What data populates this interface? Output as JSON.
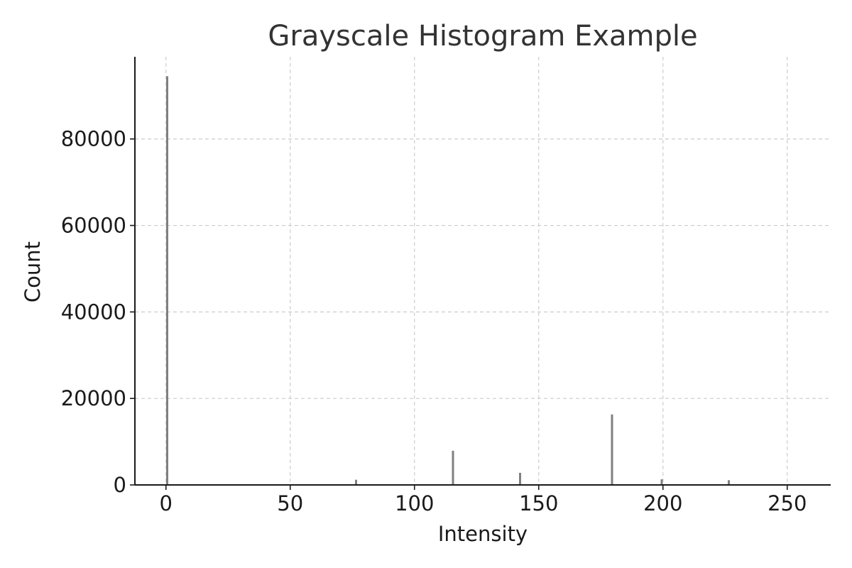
{
  "chart_data": {
    "type": "bar",
    "title": "Grayscale Histogram Example",
    "xlabel": "Intensity",
    "ylabel": "Count",
    "xlim": [
      -12.5,
      267.5
    ],
    "ylim": [
      0,
      99000
    ],
    "xticks": [
      0,
      50,
      100,
      150,
      200,
      250
    ],
    "yticks": [
      0,
      20000,
      40000,
      60000,
      80000
    ],
    "grid": true,
    "bar_color": "#808080",
    "x": [
      0,
      76,
      115,
      142,
      179,
      199,
      226
    ],
    "values": [
      94500,
      1200,
      7900,
      2800,
      16300,
      1300,
      1100
    ]
  }
}
